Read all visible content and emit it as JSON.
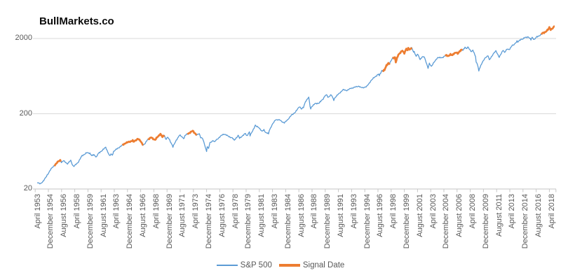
{
  "brand": {
    "logo_text": "BullMarkets.co"
  },
  "colors": {
    "sp500_line": "#5B9BD5",
    "signal_line": "#ED7D31",
    "gridline": "#D9D9D9",
    "axis": "#C6C6C6",
    "label_text": "#595959",
    "logo_text": "#0B0B0B",
    "background": "#FFFFFF"
  },
  "legend": {
    "items": [
      {
        "label": "S&P 500",
        "color": "#5B9BD5",
        "weight": "thin"
      },
      {
        "label": "Signal Date",
        "color": "#ED7D31",
        "weight": "thick"
      }
    ]
  },
  "chart_data": {
    "type": "line",
    "title": "",
    "y_axis": {
      "scale": "log",
      "tick_values": [
        20,
        200,
        2000
      ],
      "tick_labels": [
        "20",
        "200",
        "2000"
      ],
      "range": [
        20,
        3000
      ]
    },
    "x_axis": {
      "unit": "months since April 1953",
      "label_step_months": 20,
      "first_label": "April 1953",
      "last_label": "April 2018",
      "labels": [
        "April 1953",
        "December 1954",
        "August 1956",
        "April 1958",
        "December 1959",
        "August 1961",
        "April 1963",
        "December 1964",
        "August 1966",
        "April 1968",
        "December 1969",
        "August 1971",
        "April 1973",
        "December 1974",
        "August 1976",
        "April 1978",
        "December 1979",
        "August 1981",
        "April 1983",
        "December 1984",
        "August 1986",
        "April 1988",
        "December 1989",
        "August 1991",
        "April 1993",
        "December 1994",
        "August 1996",
        "April 1998",
        "December 1999",
        "August 2001",
        "April 2003",
        "December 2004",
        "August 2006",
        "April 2008",
        "December 2009",
        "August 2011",
        "April 2013",
        "December 2014",
        "August 2016",
        "April 2018"
      ]
    },
    "series": [
      {
        "name": "S&P 500",
        "color": "#5B9BD5",
        "anchor_format": "[months_since_April_1953, index_value]",
        "monthly_anchors": [
          [
            0,
            24.6
          ],
          [
            5,
            23.3
          ],
          [
            8,
            24.8
          ],
          [
            14,
            29.2
          ],
          [
            20,
            36.0
          ],
          [
            26,
            41.0
          ],
          [
            31,
            45.5
          ],
          [
            35,
            48.5
          ],
          [
            37,
            45.2
          ],
          [
            40,
            47.5
          ],
          [
            46,
            43.3
          ],
          [
            51,
            47.9
          ],
          [
            54,
            41.1
          ],
          [
            56,
            40.0
          ],
          [
            62,
            45.2
          ],
          [
            68,
            55.2
          ],
          [
            75,
            60.5
          ],
          [
            80,
            59.9
          ],
          [
            83,
            55.3
          ],
          [
            86,
            56.9
          ],
          [
            90,
            53.4
          ],
          [
            92,
            58.1
          ],
          [
            98,
            64.6
          ],
          [
            104,
            71.6
          ],
          [
            110,
            54.8
          ],
          [
            112,
            58.0
          ],
          [
            114,
            56.5
          ],
          [
            116,
            63.1
          ],
          [
            122,
            69.4
          ],
          [
            128,
            75.0
          ],
          [
            134,
            81.7
          ],
          [
            140,
            84.8
          ],
          [
            145,
            88.4
          ],
          [
            146,
            84.1
          ],
          [
            152,
            92.4
          ],
          [
            153,
            92.9
          ],
          [
            157,
            86.1
          ],
          [
            161,
            76.6
          ],
          [
            164,
            80.3
          ],
          [
            167,
            90.2
          ],
          [
            173,
            96.7
          ],
          [
            175,
            94.0
          ],
          [
            179,
            90.2
          ],
          [
            187,
            108.4
          ],
          [
            190,
            98.1
          ],
          [
            193,
            103.5
          ],
          [
            195,
            91.8
          ],
          [
            198,
            97.1
          ],
          [
            200,
            92.1
          ],
          [
            205,
            76.6
          ],
          [
            206,
            72.7
          ],
          [
            212,
            92.2
          ],
          [
            216,
            103.9
          ],
          [
            223,
            94.0
          ],
          [
            224,
            102.1
          ],
          [
            228,
            107.7
          ],
          [
            236,
            118.1
          ],
          [
            237,
            116.0
          ],
          [
            242,
            104.3
          ],
          [
            246,
            108.3
          ],
          [
            248,
            97.6
          ],
          [
            251,
            93.9
          ],
          [
            257,
            63.5
          ],
          [
            258,
            73.9
          ],
          [
            260,
            68.6
          ],
          [
            262,
            81.6
          ],
          [
            267,
            88.8
          ],
          [
            269,
            83.9
          ],
          [
            272,
            90.2
          ],
          [
            281,
            105.2
          ],
          [
            284,
            107.5
          ],
          [
            290,
            100.5
          ],
          [
            296,
            95.1
          ],
          [
            299,
            89.2
          ],
          [
            305,
            102.5
          ],
          [
            307,
            94.7
          ],
          [
            316,
            109.3
          ],
          [
            318,
            101.8
          ],
          [
            320,
            107.9
          ],
          [
            322,
            113.7
          ],
          [
            323,
            102.1
          ],
          [
            331,
            140.5
          ],
          [
            332,
            135.8
          ],
          [
            336,
            132.8
          ],
          [
            341,
            116.2
          ],
          [
            344,
            122.6
          ],
          [
            347,
            112.0
          ],
          [
            350,
            109.6
          ],
          [
            351,
            107.1
          ],
          [
            352,
            119.5
          ],
          [
            356,
            140.6
          ],
          [
            362,
            168.1
          ],
          [
            365,
            166.1
          ],
          [
            368,
            164.9
          ],
          [
            375,
            150.7
          ],
          [
            380,
            167.2
          ],
          [
            386,
            191.9
          ],
          [
            392,
            211.3
          ],
          [
            398,
            250.8
          ],
          [
            401,
            231.3
          ],
          [
            404,
            242.2
          ],
          [
            407,
            291.7
          ],
          [
            412,
            329.8
          ],
          [
            414,
            251.8
          ],
          [
            415,
            230.3
          ],
          [
            416,
            247.1
          ],
          [
            422,
            273.5
          ],
          [
            428,
            277.7
          ],
          [
            434,
            318.0
          ],
          [
            437,
            349.2
          ],
          [
            440,
            353.4
          ],
          [
            441,
            329.1
          ],
          [
            446,
            358.0
          ],
          [
            450,
            304.0
          ],
          [
            452,
            330.2
          ],
          [
            458,
            371.2
          ],
          [
            464,
            417.1
          ],
          [
            470,
            408.1
          ],
          [
            476,
            435.7
          ],
          [
            482,
            450.5
          ],
          [
            488,
            466.5
          ],
          [
            491,
            445.8
          ],
          [
            494,
            444.3
          ],
          [
            500,
            459.3
          ],
          [
            506,
            544.8
          ],
          [
            512,
            615.9
          ],
          [
            518,
            670.6
          ],
          [
            519,
            640.0
          ],
          [
            523,
            757.0
          ],
          [
            524,
            740.7
          ],
          [
            527,
            757.1
          ],
          [
            528,
            801.3
          ],
          [
            530,
            885.1
          ],
          [
            533,
            947.3
          ],
          [
            534,
            914.6
          ],
          [
            536,
            970.4
          ],
          [
            539,
            1101.8
          ],
          [
            543,
            1120.7
          ],
          [
            544,
            957.3
          ],
          [
            547,
            1163.6
          ],
          [
            548,
            1229.2
          ],
          [
            554,
            1372.7
          ],
          [
            557,
            1282.7
          ],
          [
            560,
            1469.3
          ],
          [
            562,
            1366.4
          ],
          [
            563,
            1498.6
          ],
          [
            565,
            1420.6
          ],
          [
            568,
            1517.7
          ],
          [
            571,
            1315.0
          ],
          [
            572,
            1320.3
          ],
          [
            575,
            1160.3
          ],
          [
            577,
            1255.8
          ],
          [
            581,
            1040.9
          ],
          [
            584,
            1148.1
          ],
          [
            587,
            1147.4
          ],
          [
            591,
            911.6
          ],
          [
            593,
            815.3
          ],
          [
            595,
            936.3
          ],
          [
            598,
            841.2
          ],
          [
            602,
            974.5
          ],
          [
            608,
            1111.9
          ],
          [
            611,
            1126.2
          ],
          [
            615,
            1101.7
          ],
          [
            620,
            1211.9
          ],
          [
            624,
            1156.9
          ],
          [
            627,
            1234.2
          ],
          [
            630,
            1207.0
          ],
          [
            632,
            1248.3
          ],
          [
            636,
            1310.6
          ],
          [
            638,
            1270.2
          ],
          [
            644,
            1418.3
          ],
          [
            646,
            1406.8
          ],
          [
            649,
            1530.6
          ],
          [
            651,
            1455.3
          ],
          [
            654,
            1549.4
          ],
          [
            655,
            1481.1
          ],
          [
            659,
            1322.7
          ],
          [
            661,
            1400.4
          ],
          [
            665,
            1166.4
          ],
          [
            666,
            968.8
          ],
          [
            668,
            903.3
          ],
          [
            670,
            735.1
          ],
          [
            671,
            797.9
          ],
          [
            674,
            919.3
          ],
          [
            680,
            1115.1
          ],
          [
            684,
            1186.7
          ],
          [
            686,
            1030.7
          ],
          [
            692,
            1257.6
          ],
          [
            696,
            1363.6
          ],
          [
            701,
            1131.4
          ],
          [
            704,
            1257.6
          ],
          [
            707,
            1408.5
          ],
          [
            709,
            1310.3
          ],
          [
            713,
            1440.7
          ],
          [
            716,
            1426.2
          ],
          [
            721,
            1630.7
          ],
          [
            722,
            1606.3
          ],
          [
            728,
            1848.4
          ],
          [
            729,
            1782.6
          ],
          [
            734,
            1960.2
          ],
          [
            737,
            1972.3
          ],
          [
            740,
            2058.9
          ],
          [
            745,
            2107.4
          ],
          [
            748,
            1972.2
          ],
          [
            749,
            1920.0
          ],
          [
            751,
            2080.4
          ],
          [
            754,
            1932.2
          ],
          [
            758,
            2098.9
          ],
          [
            764,
            2238.8
          ],
          [
            767,
            2362.7
          ],
          [
            770,
            2423.4
          ],
          [
            773,
            2519.4
          ],
          [
            776,
            2673.6
          ],
          [
            777,
            2823.8
          ],
          [
            779,
            2640.9
          ],
          [
            782,
            2718.4
          ],
          [
            785,
            2914.0
          ]
        ]
      },
      {
        "name": "Signal Date",
        "color": "#ED7D31",
        "month_ranges": [
          [
            26,
            36
          ],
          [
            129,
            161
          ],
          [
            168,
            193
          ],
          [
            228,
            242
          ],
          [
            524,
            535
          ],
          [
            539,
            568
          ],
          [
            619,
            645
          ],
          [
            765,
            785
          ]
        ],
        "date_ranges": [
          [
            "June 1955",
            "April 1956"
          ],
          [
            "January 1964",
            "September 1966"
          ],
          [
            "April 1967",
            "May 1969"
          ],
          [
            "April 1972",
            "June 1973"
          ],
          [
            "December 1996",
            "November 1997"
          ],
          [
            "March 1998",
            "August 2000"
          ],
          [
            "November 2004",
            "January 2007"
          ],
          [
            "January 2017",
            "September 2018"
          ]
        ]
      }
    ]
  }
}
